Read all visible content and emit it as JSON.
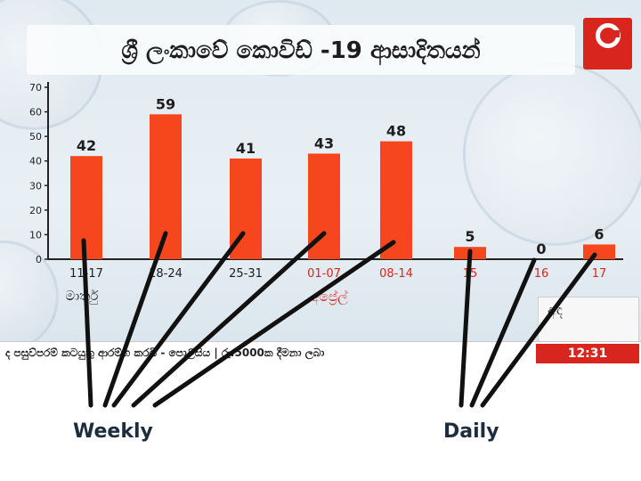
{
  "channel": {
    "name": "Derana",
    "clock": "12:31",
    "inset_label": "අද"
  },
  "ticker": {
    "text": "ද පසුව්පරම් කටයුතු ආරම්භ කරයි - පොලිසිය | රු.5000ක දීමනා ලබා"
  },
  "captions": {
    "weekly": "Weekly",
    "daily": "Daily"
  },
  "colors": {
    "bar": "#f5461e",
    "axis": "#222222",
    "title_text": "#1d1d1d",
    "brand_red": "#d8261f",
    "month_april": "#d8261f"
  },
  "chart_data": {
    "type": "bar",
    "title": "ශ්‍රී ලංකාවේ කොවිඩ් -19 ආසාදිතයන්",
    "categories": [
      "11-17",
      "18-24",
      "25-31",
      "01-07",
      "08-14",
      "15",
      "16",
      "17"
    ],
    "values": [
      42,
      59,
      41,
      43,
      48,
      5,
      0,
      6
    ],
    "data_labels": [
      "42",
      "59",
      "41",
      "43",
      "48",
      "5",
      "0",
      "6"
    ],
    "month_labels": [
      {
        "text": "මාර්තු",
        "category_span": [
          "11-17",
          "25-31"
        ]
      },
      {
        "text": "අප්‍රේල්",
        "category_span": [
          "01-07",
          "17"
        ]
      }
    ],
    "ylim": [
      0,
      70
    ],
    "yticks": [
      0,
      10,
      20,
      30,
      40,
      50,
      60,
      70
    ],
    "grid": false,
    "legend": "none",
    "annotations": [
      {
        "text": "Weekly",
        "categories": [
          "11-17",
          "18-24",
          "25-31",
          "01-07",
          "08-14"
        ]
      },
      {
        "text": "Daily",
        "categories": [
          "15",
          "16",
          "17"
        ]
      }
    ]
  }
}
